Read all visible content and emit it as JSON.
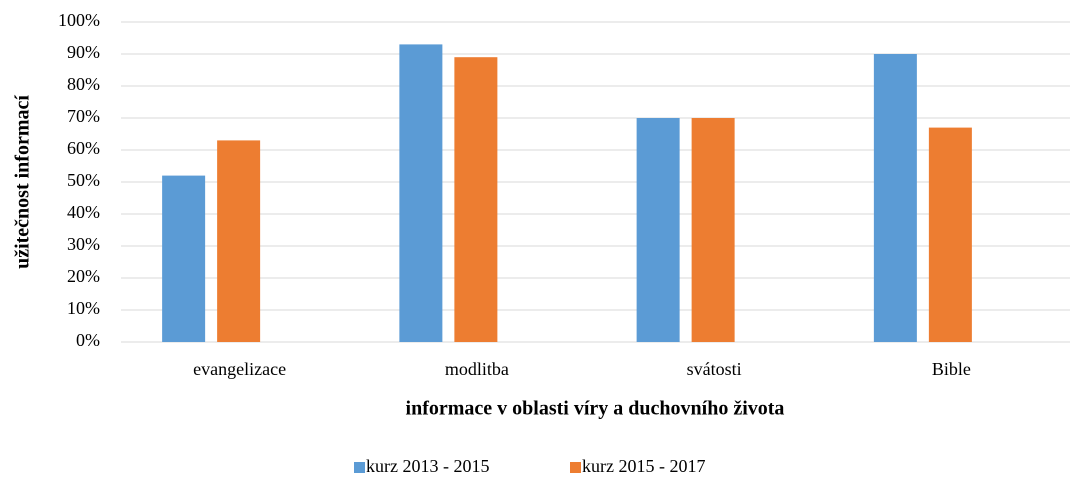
{
  "chart_data": {
    "type": "bar",
    "x_label": "informace v oblasti víry a duchovního života",
    "y_label": "užitečnost informací",
    "categories": [
      "evangelizace",
      "modlitba",
      "svátosti",
      "Bible"
    ],
    "series": [
      {
        "name": "kurz 2013 - 2015",
        "color": "#5b9bd5",
        "values": [
          52,
          93,
          70,
          90
        ]
      },
      {
        "name": "kurz 2015 - 2017",
        "color": "#ed7d31",
        "values": [
          63,
          89,
          70,
          67
        ]
      }
    ],
    "ylim": [
      0,
      100
    ],
    "yticks": [
      {
        "value": 0,
        "label": "0%"
      },
      {
        "value": 10,
        "label": "10%"
      },
      {
        "value": 20,
        "label": "20%"
      },
      {
        "value": 30,
        "label": "30%"
      },
      {
        "value": 40,
        "label": "40%"
      },
      {
        "value": 50,
        "label": "50%"
      },
      {
        "value": 60,
        "label": "60%"
      },
      {
        "value": 70,
        "label": "70%"
      },
      {
        "value": 80,
        "label": "80%"
      },
      {
        "value": 90,
        "label": "90%"
      },
      {
        "value": 100,
        "label": "100%"
      }
    ],
    "grid": true,
    "legend": "bottom"
  }
}
